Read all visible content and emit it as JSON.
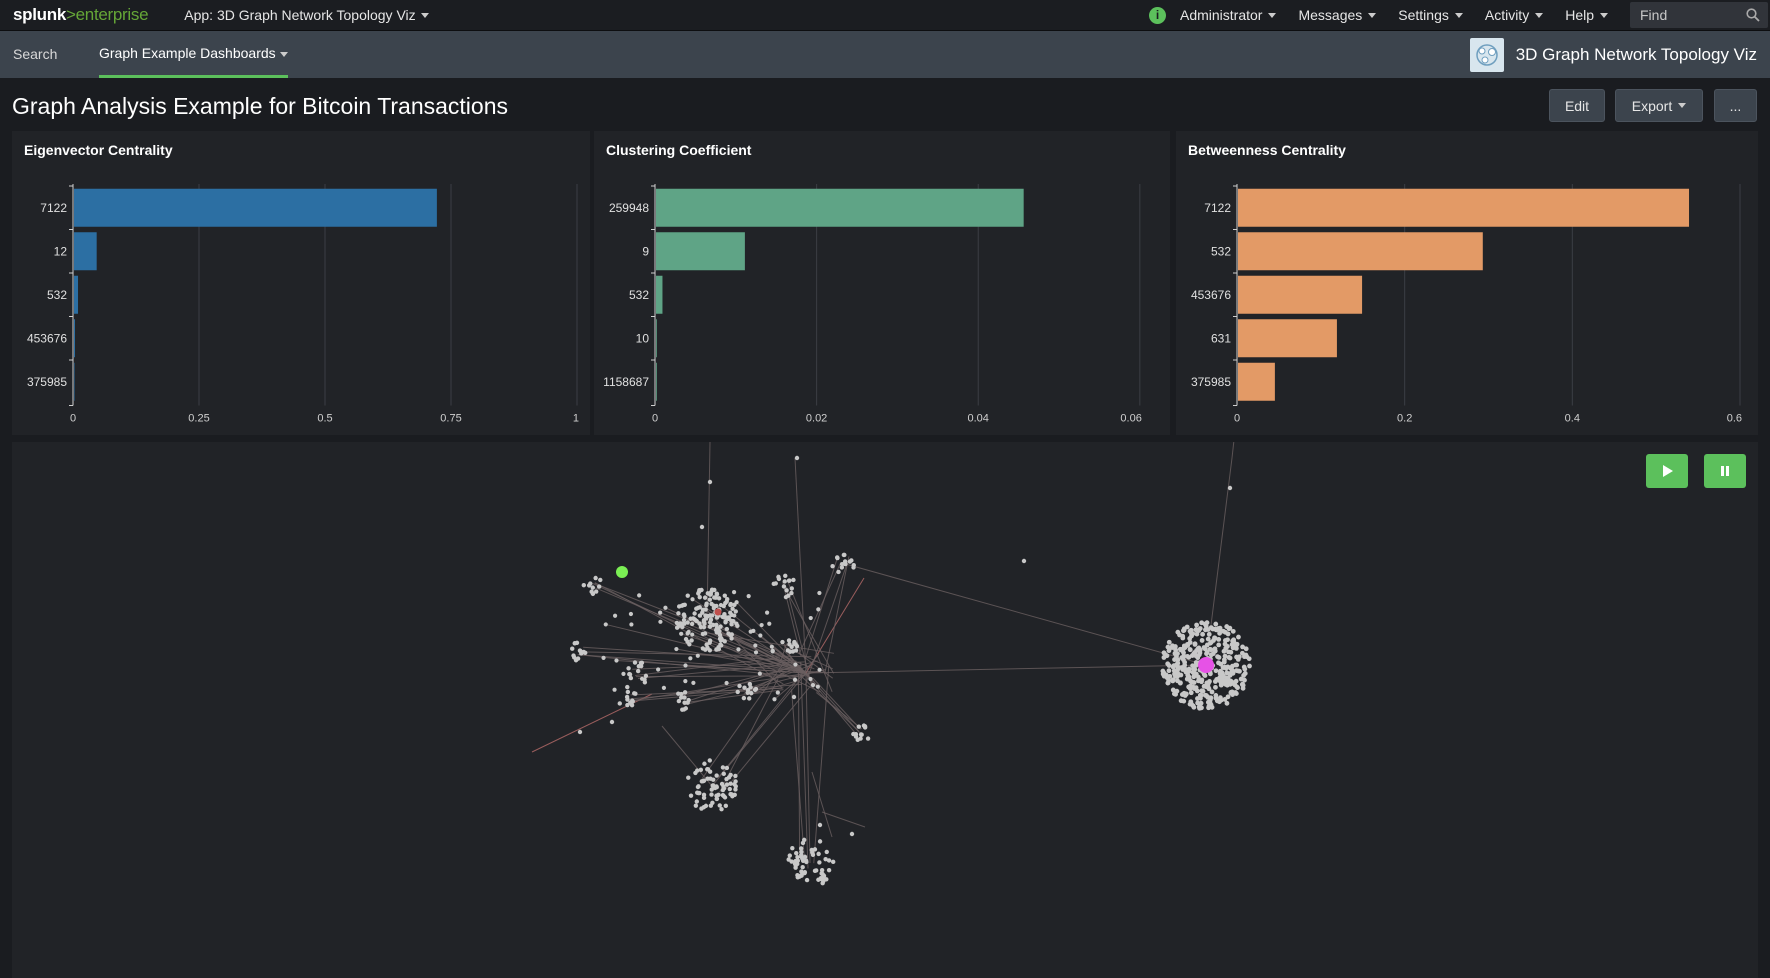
{
  "topbar": {
    "logo_main": "splunk",
    "logo_sep": ">",
    "logo_product": "enterprise",
    "app_menu": "App: 3D Graph Network Topology Viz",
    "user": "Administrator",
    "messages": "Messages",
    "settings": "Settings",
    "activity": "Activity",
    "help": "Help",
    "find_placeholder": "Find"
  },
  "navbar": {
    "search": "Search",
    "dashboards": "Graph Example Dashboards",
    "app_title": "3D Graph Network Topology Viz"
  },
  "dashboard": {
    "title": "Graph Analysis Example for Bitcoin Transactions",
    "edit": "Edit",
    "export": "Export",
    "more": "..."
  },
  "colors": {
    "eigen": "#2c6fa3",
    "cluster": "#5fa486",
    "between": "#e39a66",
    "accent": "#5cc05c"
  },
  "chart_data": [
    {
      "type": "bar",
      "orientation": "horizontal",
      "title": "Eigenvector Centrality",
      "categories": [
        "7122",
        "12",
        "532",
        "453676",
        "375985"
      ],
      "values": [
        0.72,
        0.045,
        0.008,
        0.002,
        0.001
      ],
      "xlim": [
        0,
        1
      ],
      "xticks": [
        "0",
        "0.25",
        "0.5",
        "0.75",
        "1"
      ],
      "grid": true
    },
    {
      "type": "bar",
      "orientation": "horizontal",
      "title": "Clustering Coefficient",
      "categories": [
        "259948",
        "9",
        "532",
        "10",
        "1158687"
      ],
      "values": [
        0.0455,
        0.011,
        0.0008,
        0.0001,
        0.0001
      ],
      "xlim": [
        0,
        0.062
      ],
      "xticks": [
        "0",
        "0.02",
        "0.04",
        "0.06"
      ],
      "grid": true
    },
    {
      "type": "bar",
      "orientation": "horizontal",
      "title": "Betweenness Centrality",
      "categories": [
        "7122",
        "532",
        "453676",
        "631",
        "375985"
      ],
      "values": [
        0.538,
        0.292,
        0.148,
        0.118,
        0.044
      ],
      "xlim": [
        0,
        0.6
      ],
      "xticks": [
        "0",
        "0.2",
        "0.4",
        "0.6"
      ],
      "grid": true
    }
  ],
  "graph": {
    "play_icon": "play-icon",
    "pause_icon": "pause-icon"
  }
}
